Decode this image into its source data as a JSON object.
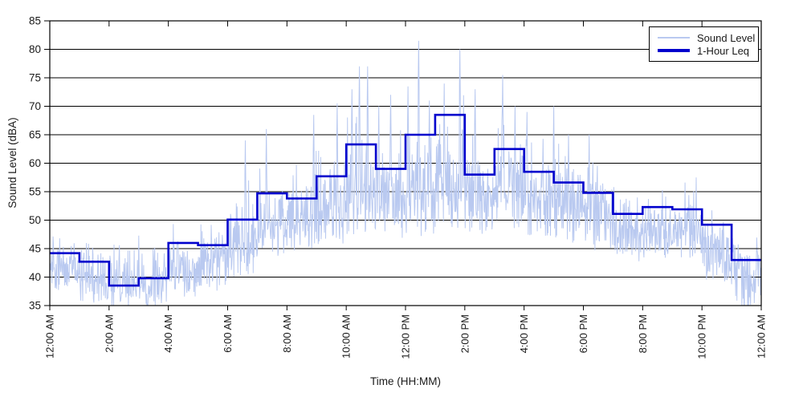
{
  "chart_data": {
    "type": "line",
    "title": "",
    "xlabel": "Time (HH:MM)",
    "ylabel": "Sound Level (dBA)",
    "xlim_hours": [
      0,
      24
    ],
    "ylim": [
      35,
      85
    ],
    "grid": "horizontal",
    "legend_position": "top-right",
    "background_color": "#ffffff",
    "axis_color": "#000000",
    "x_tick_hours": [
      0,
      2,
      4,
      6,
      8,
      10,
      12,
      14,
      16,
      18,
      20,
      22,
      24
    ],
    "x_tick_labels": [
      "12:00 AM",
      "2:00 AM",
      "4:00 AM",
      "6:00 AM",
      "8:00 AM",
      "10:00 AM",
      "12:00 PM",
      "2:00 PM",
      "4:00 PM",
      "6:00 PM",
      "8:00 PM",
      "10:00 PM",
      "12:00 AM"
    ],
    "y_tick_values": [
      35,
      40,
      45,
      50,
      55,
      60,
      65,
      70,
      75,
      80,
      85
    ],
    "series": [
      {
        "name": "Sound Level",
        "kind": "fine-resolution noisy trace (values estimated from plot)",
        "color": "#b9c9f0",
        "line_width": 1,
        "envelope_format": "[typical_dBA, low_dBA, high_dBA] per hour 0-23",
        "per_hour_envelope": [
          [
            42,
            37,
            48.5
          ],
          [
            40.5,
            35,
            49
          ],
          [
            38,
            34,
            46.5
          ],
          [
            38.5,
            34.5,
            47
          ],
          [
            41.5,
            36.5,
            50.5
          ],
          [
            43.5,
            37.5,
            53
          ],
          [
            46.5,
            40,
            58
          ],
          [
            49.5,
            43.5,
            60
          ],
          [
            50.5,
            44.5,
            62
          ],
          [
            52,
            45,
            64
          ],
          [
            54,
            47,
            68
          ],
          [
            54,
            47,
            66
          ],
          [
            55,
            47,
            70
          ],
          [
            56,
            48,
            72
          ],
          [
            54.5,
            47,
            66
          ],
          [
            55,
            48,
            68
          ],
          [
            54,
            47,
            65
          ],
          [
            52.5,
            46,
            63
          ],
          [
            51,
            44.5,
            61
          ],
          [
            48.5,
            43,
            57
          ],
          [
            48.5,
            43,
            56
          ],
          [
            48.5,
            43,
            56.5
          ],
          [
            45.5,
            39,
            52.5
          ],
          [
            40.5,
            34.5,
            48
          ]
        ],
        "peaks_format": "[hour_decimal, dBA]",
        "peaks": [
          [
            6.6,
            64
          ],
          [
            7.3,
            66
          ],
          [
            8.9,
            68.5
          ],
          [
            9.7,
            70.5
          ],
          [
            10.2,
            73
          ],
          [
            10.45,
            77
          ],
          [
            10.72,
            77
          ],
          [
            11.1,
            70
          ],
          [
            11.5,
            72
          ],
          [
            12.08,
            73.5
          ],
          [
            12.45,
            81.5
          ],
          [
            12.8,
            71
          ],
          [
            13.3,
            74
          ],
          [
            13.83,
            80
          ],
          [
            14.35,
            73
          ],
          [
            15.28,
            75.5
          ],
          [
            15.7,
            70
          ],
          [
            16.1,
            69
          ],
          [
            17.0,
            70
          ],
          [
            17.5,
            65
          ],
          [
            18.2,
            65
          ],
          [
            21.8,
            57.5
          ]
        ],
        "synthesis": {
          "seed": 1337,
          "samples_per_hour": 72
        }
      },
      {
        "name": "1-Hour Leq",
        "kind": "hourly step line",
        "color": "#0000cd",
        "line_width": 3,
        "hourly_values_dBA": [
          44.2,
          42.7,
          38.5,
          39.8,
          46.0,
          45.6,
          50.1,
          54.7,
          53.8,
          57.7,
          63.3,
          59.0,
          65.0,
          68.5,
          58.0,
          62.5,
          58.5,
          56.6,
          54.8,
          51.1,
          52.3,
          51.9,
          49.2,
          43.0
        ]
      }
    ]
  }
}
